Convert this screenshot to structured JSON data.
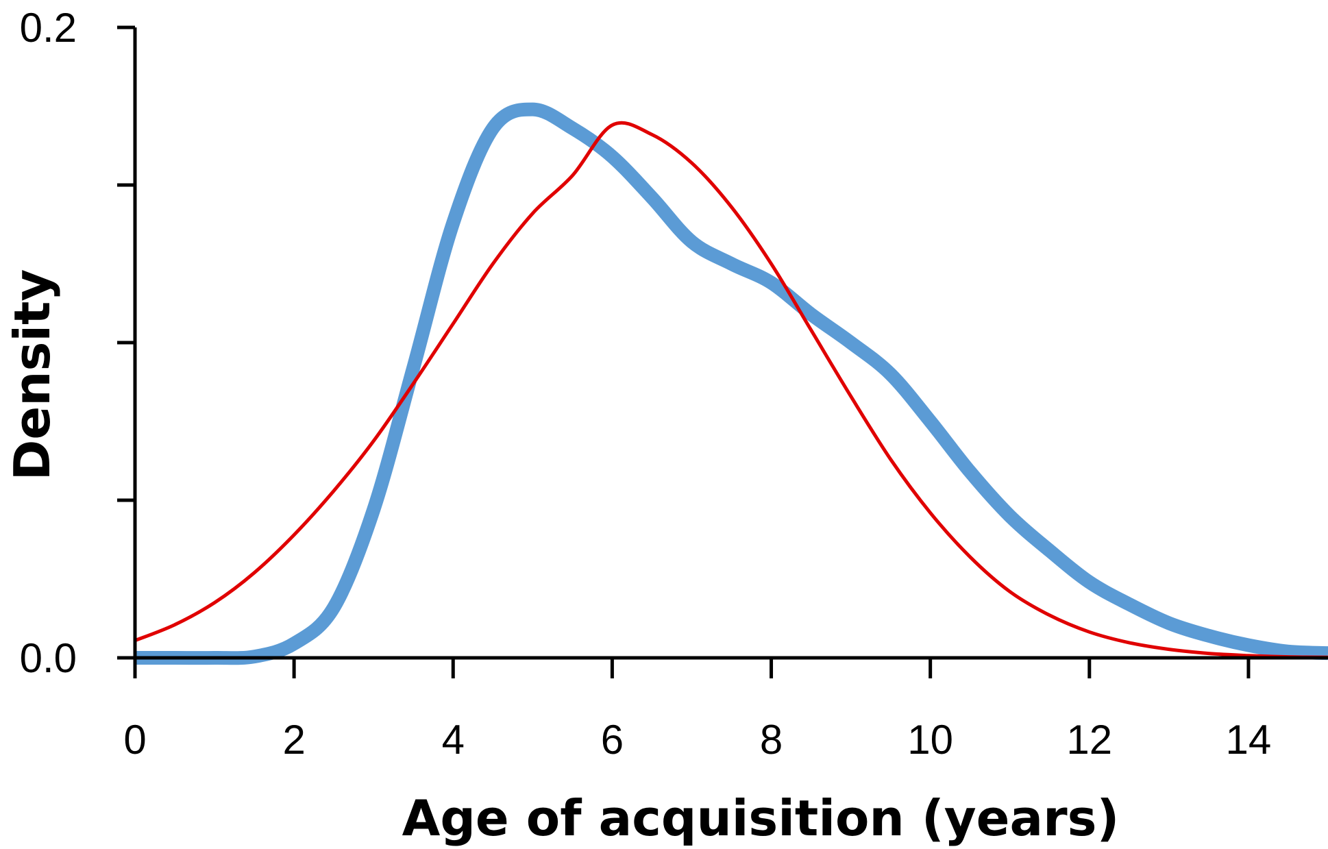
{
  "chart_data": {
    "type": "line",
    "title": "",
    "xlabel": "Age of acquisition (years)",
    "ylabel": "Density",
    "xlim": [
      0,
      15
    ],
    "ylim": [
      0,
      0.2
    ],
    "x_ticks": [
      0,
      2,
      4,
      6,
      8,
      10,
      12,
      14
    ],
    "y_ticks": [
      0.0,
      0.05,
      0.1,
      0.15,
      0.2
    ],
    "y_tick_labels": [
      "0.0",
      "",
      "",
      "",
      "0.2"
    ],
    "grid": false,
    "legend": "none",
    "series": [
      {
        "color": "#5b9bd5",
        "x": [
          0,
          0.5,
          1,
          1.5,
          2,
          2.5,
          3,
          3.5,
          4,
          4.5,
          5,
          5.5,
          6,
          6.5,
          7,
          7.5,
          8,
          8.5,
          9,
          9.5,
          10,
          10.5,
          11,
          11.5,
          12,
          12.5,
          13,
          13.5,
          14,
          14.5,
          15
        ],
        "y": [
          0.0,
          0.0,
          0.0,
          0.0004,
          0.0045,
          0.016,
          0.047,
          0.092,
          0.138,
          0.168,
          0.174,
          0.168,
          0.159,
          0.146,
          0.132,
          0.125,
          0.119,
          0.109,
          0.1,
          0.09,
          0.075,
          0.059,
          0.045,
          0.034,
          0.024,
          0.017,
          0.011,
          0.007,
          0.004,
          0.002,
          0.0015
        ]
      },
      {
        "color": "#e00000",
        "x": [
          0,
          0.5,
          1,
          1.5,
          2,
          2.5,
          3,
          3.5,
          4,
          4.5,
          5,
          5.5,
          6,
          6.5,
          7,
          7.5,
          8,
          8.5,
          9,
          9.5,
          10,
          10.5,
          11,
          11.5,
          12,
          12.5,
          13,
          13.5,
          14,
          14.5,
          15
        ],
        "y": [
          0.0055,
          0.0105,
          0.0175,
          0.027,
          0.039,
          0.053,
          0.0688,
          0.087,
          0.106,
          0.125,
          0.141,
          0.153,
          0.169,
          0.166,
          0.157,
          0.143,
          0.125,
          0.104,
          0.083,
          0.063,
          0.046,
          0.032,
          0.021,
          0.0135,
          0.0082,
          0.0048,
          0.0027,
          0.0014,
          0.0007,
          0.0003,
          0.00015
        ]
      }
    ]
  }
}
